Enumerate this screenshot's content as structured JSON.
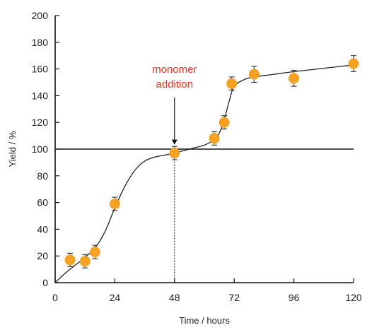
{
  "chart_data": {
    "type": "scatter",
    "xlabel": "Time / hours",
    "ylabel": "Yield / %",
    "xlim": [
      0,
      120
    ],
    "ylim": [
      0,
      200
    ],
    "x_ticks": [
      0,
      24,
      48,
      72,
      96,
      120
    ],
    "y_ticks": [
      0,
      20,
      40,
      60,
      80,
      100,
      120,
      140,
      160,
      180,
      200
    ],
    "grid": false,
    "reference_line_y": 100,
    "marker_line_x": 48,
    "annotation": {
      "line1": "monomer",
      "line2": "addition",
      "x": 48,
      "y": 97,
      "color": "#e8321e"
    },
    "points": [
      {
        "x": 6,
        "y": 17,
        "err": 5
      },
      {
        "x": 12,
        "y": 16,
        "err": 5
      },
      {
        "x": 16,
        "y": 23,
        "err": 5
      },
      {
        "x": 24,
        "y": 59,
        "err": 5
      },
      {
        "x": 48,
        "y": 97,
        "err": 5
      },
      {
        "x": 64,
        "y": 108,
        "err": 5
      },
      {
        "x": 68,
        "y": 120,
        "err": 5
      },
      {
        "x": 71,
        "y": 149,
        "err": 5
      },
      {
        "x": 80,
        "y": 156,
        "err": 6
      },
      {
        "x": 96,
        "y": 153,
        "err": 6
      },
      {
        "x": 120,
        "y": 164,
        "err": 6
      }
    ],
    "fit_curve": [
      [
        0,
        0
      ],
      [
        4,
        7
      ],
      [
        8,
        13
      ],
      [
        12,
        19
      ],
      [
        16,
        26
      ],
      [
        20,
        38
      ],
      [
        24,
        56
      ],
      [
        28,
        72
      ],
      [
        32,
        84
      ],
      [
        36,
        91
      ],
      [
        40,
        94
      ],
      [
        44,
        95.5
      ],
      [
        48,
        97
      ],
      [
        52,
        99
      ],
      [
        56,
        101
      ],
      [
        60,
        103
      ],
      [
        64,
        107
      ],
      [
        66,
        112
      ],
      [
        68,
        122
      ],
      [
        70,
        136
      ],
      [
        72,
        147
      ],
      [
        76,
        152
      ],
      [
        80,
        154
      ],
      [
        88,
        156
      ],
      [
        96,
        158
      ],
      [
        108,
        160.5
      ],
      [
        120,
        163
      ]
    ],
    "colors": {
      "marker": "#f5a124",
      "error_bar": "#333333",
      "curve": "#222222",
      "axis": "#111111"
    }
  }
}
